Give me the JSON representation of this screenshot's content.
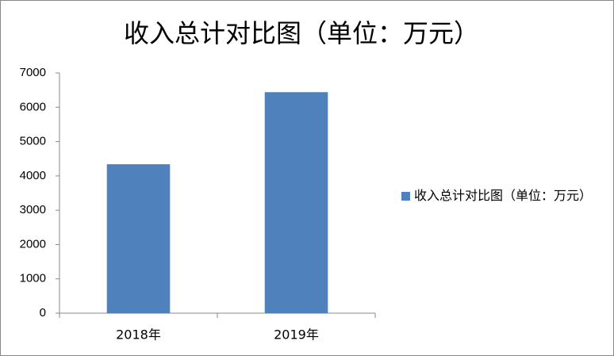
{
  "chart_data": {
    "type": "bar",
    "title": "收入总计对比图（单位：万元）",
    "categories": [
      "2018年",
      "2019年"
    ],
    "series": [
      {
        "name": "收入总计对比图（单位：万元）",
        "color": "#4f81bd",
        "values": [
          4340,
          6440
        ]
      }
    ],
    "ylim": [
      0,
      7000
    ],
    "yticks": [
      0,
      1000,
      2000,
      3000,
      4000,
      5000,
      6000,
      7000
    ],
    "grid": false,
    "legend": "right"
  }
}
